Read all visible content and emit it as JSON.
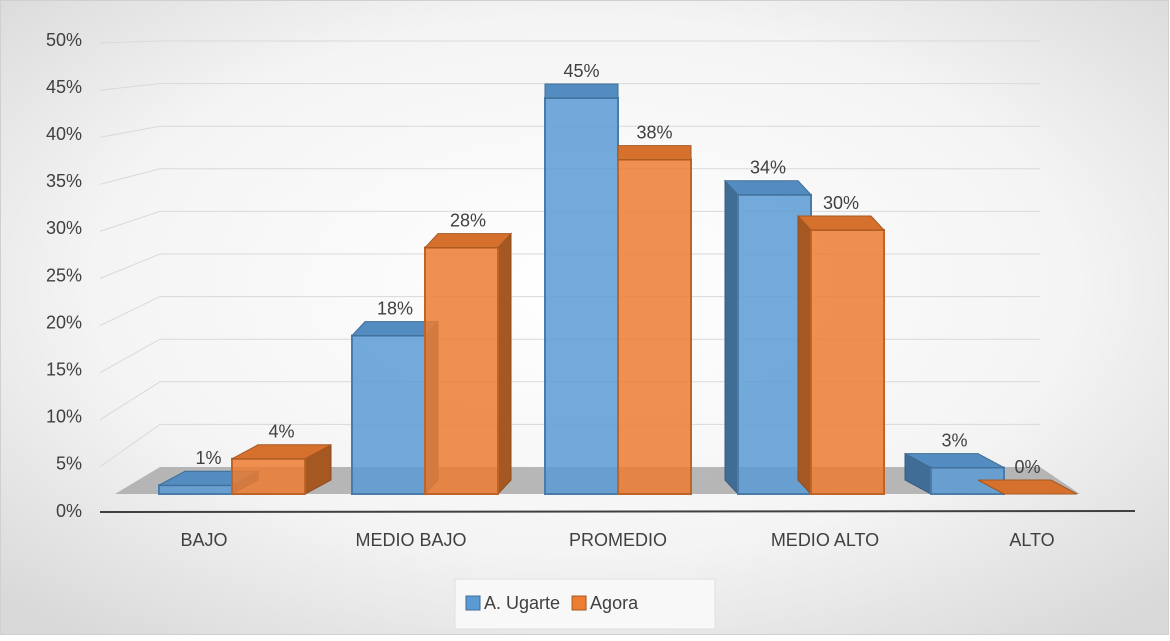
{
  "chart_data": {
    "type": "bar3d",
    "categories": [
      "BAJO",
      "MEDIO BAJO",
      "PROMEDIO",
      "MEDIO ALTO",
      "ALTO"
    ],
    "series": [
      {
        "name": "A. Ugarte",
        "color": "#5b9bd5",
        "values": [
          1,
          18,
          45,
          34,
          3
        ],
        "value_labels": [
          "1%",
          "18%",
          "45%",
          "34%",
          "3%"
        ]
      },
      {
        "name": "Agora",
        "color": "#ed7d31",
        "values": [
          4,
          28,
          38,
          30,
          0
        ],
        "value_labels": [
          "4%",
          "28%",
          "38%",
          "30%",
          "0%"
        ]
      }
    ],
    "ylim": [
      0,
      50
    ],
    "yticks": [
      {
        "value": 0,
        "label": "0%"
      },
      {
        "value": 5,
        "label": "5%"
      },
      {
        "value": 10,
        "label": "10%"
      },
      {
        "value": 15,
        "label": "15%"
      },
      {
        "value": 20,
        "label": "20%"
      },
      {
        "value": 25,
        "label": "25%"
      },
      {
        "value": 30,
        "label": "30%"
      },
      {
        "value": 35,
        "label": "35%"
      },
      {
        "value": 40,
        "label": "40%"
      },
      {
        "value": 45,
        "label": "45%"
      },
      {
        "value": 50,
        "label": "50%"
      }
    ],
    "grid": true,
    "legend": "bottom"
  }
}
